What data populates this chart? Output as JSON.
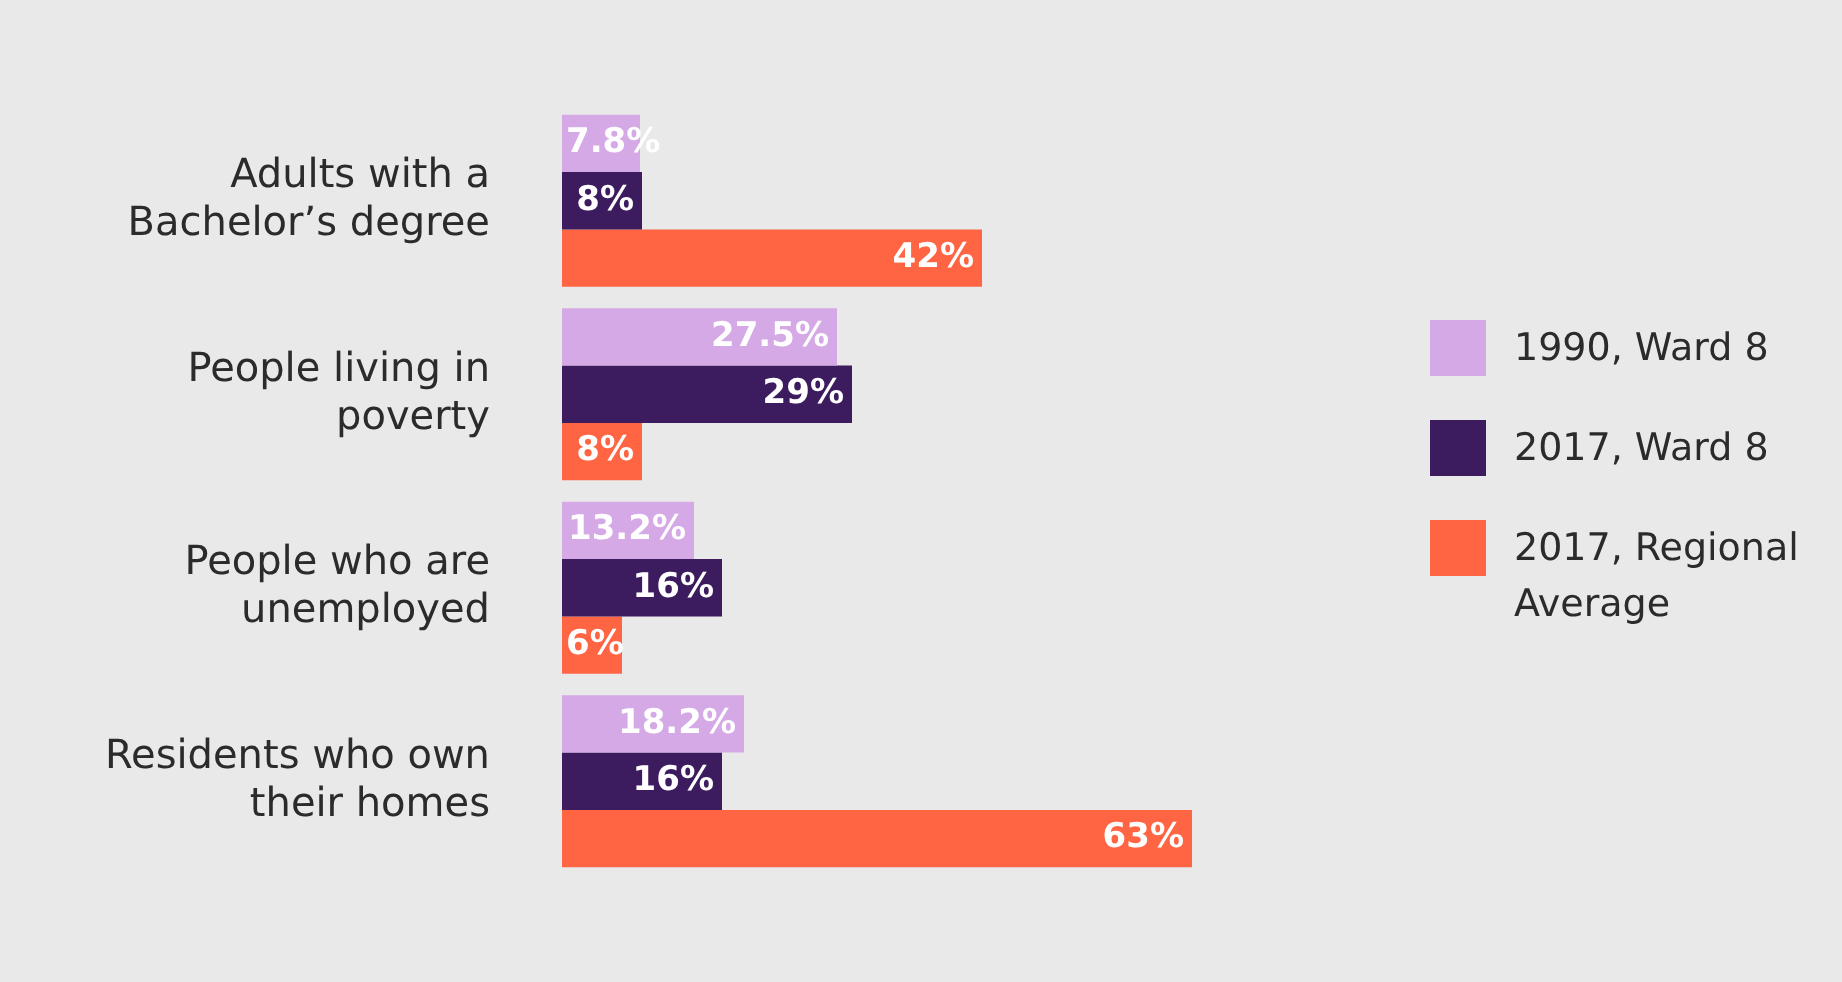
{
  "chart_data": {
    "type": "bar",
    "orientation": "horizontal",
    "tick_labels": "y",
    "legend": "right",
    "categories": [
      "Adults with a Bachelor’s degree",
      "People living in poverty",
      "People who are unemployed",
      "Residents who own their homes"
    ],
    "series": [
      {
        "name": "1990, Ward 8",
        "color": "#d5a8e6",
        "values": [
          7.8,
          27.5,
          13.2,
          18.2
        ],
        "value_labels": [
          "7.8%",
          "27.5%",
          "13.2%",
          "18.2%"
        ]
      },
      {
        "name": "2017, Ward 8",
        "color": "#3d1b5f",
        "values": [
          8,
          29,
          16,
          16
        ],
        "value_labels": [
          "8%",
          "29%",
          "16%",
          "16%"
        ]
      },
      {
        "name": "2017, Regional Average",
        "color": "#ff6543",
        "values": [
          42,
          8,
          6,
          63
        ],
        "value_labels": [
          "42%",
          "8%",
          "6%",
          "63%"
        ]
      }
    ]
  }
}
